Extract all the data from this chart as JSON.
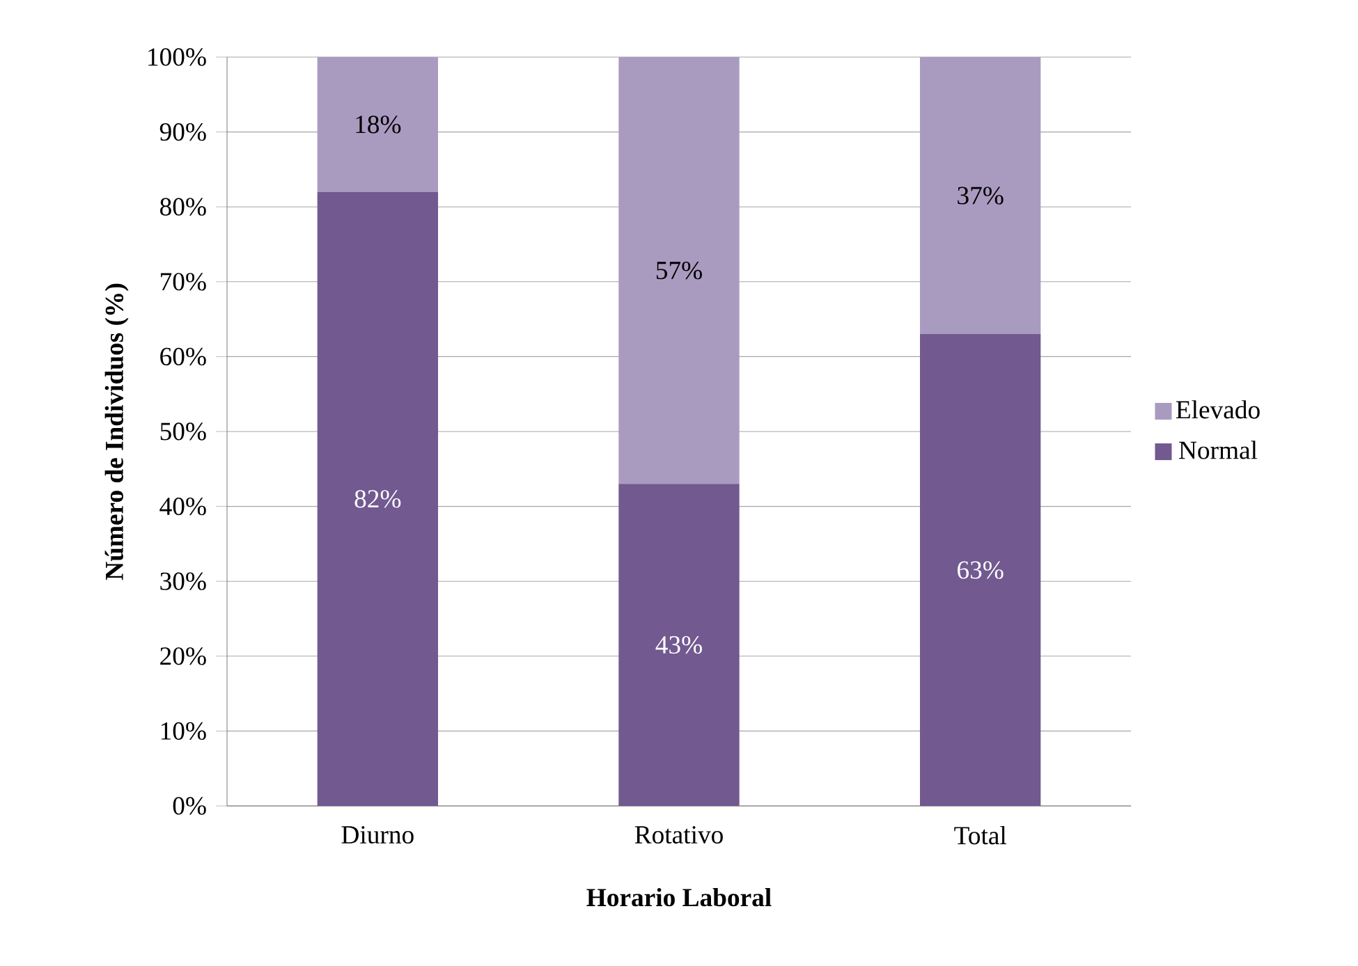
{
  "chart_data": {
    "type": "bar",
    "stacked": true,
    "xlabel": "Horario Laboral",
    "ylabel": "Número de Individuos (%)",
    "categories": [
      "Diurno",
      "Rotativo",
      "Total"
    ],
    "series": [
      {
        "name": "Normal",
        "color": "#725990",
        "values": [
          82,
          43,
          63
        ],
        "value_labels": [
          "82%",
          "43%",
          "63%"
        ]
      },
      {
        "name": "Elevado",
        "color": "#a99bc0",
        "values": [
          18,
          57,
          37
        ],
        "value_labels": [
          "18%",
          "57%",
          "37%"
        ]
      }
    ],
    "ylim": [
      0,
      100
    ],
    "yticks": [
      {
        "value": 0,
        "label": "0%"
      },
      {
        "value": 10,
        "label": "10%"
      },
      {
        "value": 20,
        "label": "20%"
      },
      {
        "value": 30,
        "label": "30%"
      },
      {
        "value": 40,
        "label": "40%"
      },
      {
        "value": 50,
        "label": "50%"
      },
      {
        "value": 60,
        "label": "60%"
      },
      {
        "value": 70,
        "label": "70%"
      },
      {
        "value": 80,
        "label": "80%"
      },
      {
        "value": 90,
        "label": "90%"
      },
      {
        "value": 100,
        "label": "100%"
      }
    ],
    "grid": "y",
    "legend": "right"
  }
}
